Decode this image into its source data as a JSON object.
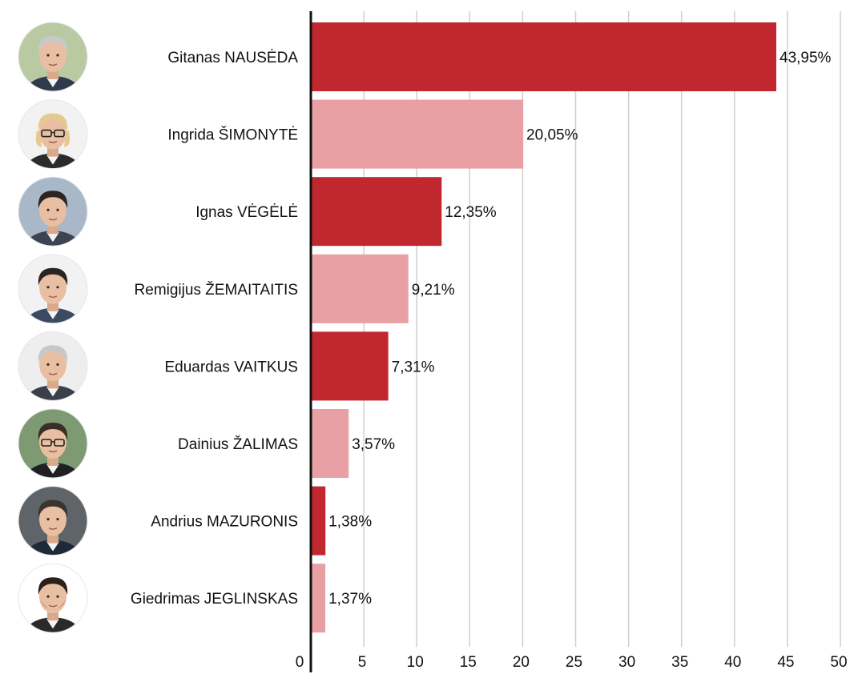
{
  "chart_data": {
    "type": "bar",
    "orientation": "horizontal",
    "categories": [
      "Gitanas NAUSĖDA",
      "Ingrida ŠIMONYTĖ",
      "Ignas VĖGĖLĖ",
      "Remigijus ŽEMAITAITIS",
      "Eduardas VAITKUS",
      "Dainius ŽALIMAS",
      "Andrius MAZURONIS",
      "Giedrimas JEGLINSKAS"
    ],
    "values": [
      43.95,
      20.05,
      12.35,
      9.21,
      7.31,
      3.57,
      1.38,
      1.37
    ],
    "value_labels": [
      "43,95%",
      "20,05%",
      "12,35%",
      "9,21%",
      "7,31%",
      "3,57%",
      "1,38%",
      "1,37%"
    ],
    "bar_colors": [
      "#c1272f",
      "#e8a0a4",
      "#c1272f",
      "#e8a0a4",
      "#c1272f",
      "#e8a0a4",
      "#c1272f",
      "#e8a0a4"
    ],
    "xlim": [
      0,
      50
    ],
    "xticks": [
      0,
      5,
      10,
      15,
      20,
      25,
      30,
      35,
      40,
      45,
      50
    ],
    "xtick_labels": [
      "0",
      "5",
      "10",
      "15",
      "20",
      "25",
      "30",
      "35",
      "40",
      "45",
      "50"
    ],
    "grid": true,
    "title": "",
    "xlabel": "",
    "ylabel": "",
    "avatar_icons": [
      "portrait-gray-hair-icon",
      "portrait-blonde-glasses-icon",
      "portrait-dark-hair-icon",
      "portrait-dark-hair-suit-icon",
      "portrait-gray-hair-older-icon",
      "portrait-glasses-icon",
      "portrait-short-hair-icon",
      "portrait-beard-icon"
    ]
  }
}
